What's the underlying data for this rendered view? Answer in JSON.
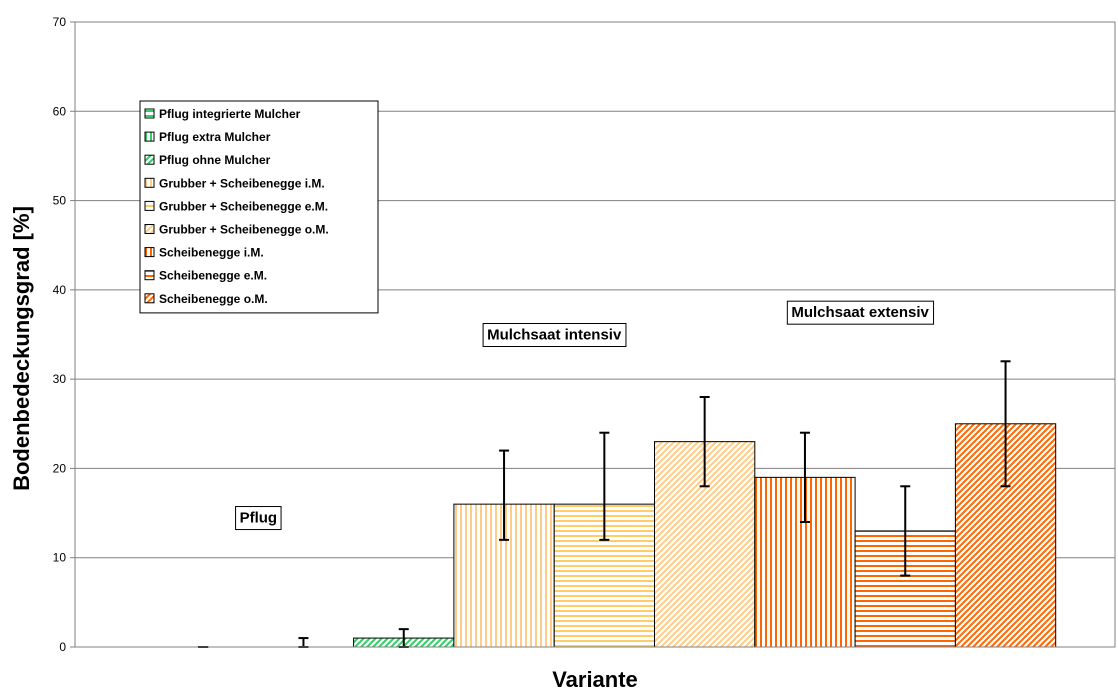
{
  "chart_data": {
    "type": "bar",
    "title": "",
    "xlabel": "Variante",
    "ylabel": "Bodenbedeckungsgrad [%]",
    "ylim": [
      0,
      70
    ],
    "yticks": [
      0,
      10,
      20,
      30,
      40,
      50,
      60,
      70
    ],
    "grid": true,
    "legend_position": "top-left",
    "series": [
      {
        "name": "Pflug integrierte Mulcher",
        "value": 0,
        "err_low": 0,
        "err_high": 0,
        "color": "#33cc66",
        "pattern": "horizontal"
      },
      {
        "name": "Pflug extra Mulcher",
        "value": 0,
        "err_low": 0,
        "err_high": 1,
        "color": "#33cc66",
        "pattern": "vertical"
      },
      {
        "name": "Pflug ohne Mulcher",
        "value": 1,
        "err_low": 0,
        "err_high": 2,
        "color": "#33cc66",
        "pattern": "diagonal"
      },
      {
        "name": "Grubber + Scheibenegge i.M.",
        "value": 16,
        "err_low": 12,
        "err_high": 22,
        "color": "#ffcc88",
        "pattern": "vertical"
      },
      {
        "name": "Grubber + Scheibenegge e.M.",
        "value": 16,
        "err_low": 12,
        "err_high": 24,
        "color": "#ffcc66",
        "pattern": "horizontal"
      },
      {
        "name": "Grubber + Scheibenegge o.M.",
        "value": 23,
        "err_low": 18,
        "err_high": 28,
        "color": "#ffcc88",
        "pattern": "diagonal"
      },
      {
        "name": "Scheibenegge i.M.",
        "value": 19,
        "err_low": 14,
        "err_high": 24,
        "color": "#ff6600",
        "pattern": "vertical"
      },
      {
        "name": "Scheibenegge e.M.",
        "value": 13,
        "err_low": 8,
        "err_high": 18,
        "color": "#ff6600",
        "pattern": "horizontal"
      },
      {
        "name": "Scheibenegge o.M.",
        "value": 25,
        "err_low": 18,
        "err_high": 32,
        "color": "#ff6600",
        "pattern": "diagonal"
      }
    ],
    "annotations": [
      {
        "text": "Pflug",
        "x_index": 1.05,
        "y": 14.5
      },
      {
        "text": "Mulchsaat intensiv",
        "x_index": 4.0,
        "y": 35.0
      },
      {
        "text": "Mulchsaat extensiv",
        "x_index": 7.05,
        "y": 37.5
      }
    ]
  }
}
